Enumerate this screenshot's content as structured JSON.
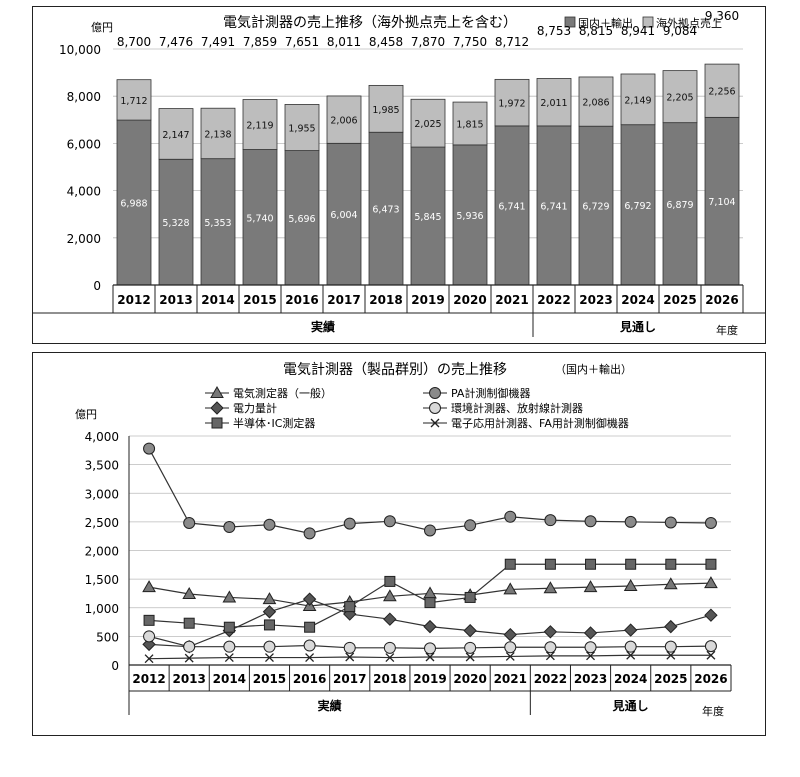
{
  "chart_data": [
    {
      "type": "bar",
      "title": "電気計測器の売上推移（海外拠点売上を含む）",
      "yunit": "億円",
      "xunit": "年度",
      "ylim": [
        0,
        10000
      ],
      "yticks": [
        "0",
        "2,000",
        "4,000",
        "6,000",
        "8,000",
        "10,000"
      ],
      "grid": true,
      "legend_position": "top-right",
      "categories": [
        "2012",
        "2013",
        "2014",
        "2015",
        "2016",
        "2017",
        "2018",
        "2019",
        "2020",
        "2021",
        "2022",
        "2023",
        "2024",
        "2025",
        "2026"
      ],
      "groups": [
        {
          "label": "実績",
          "span": [
            0,
            9
          ]
        },
        {
          "label": "見通し",
          "span": [
            10,
            14
          ]
        }
      ],
      "series": [
        {
          "name": "国内＋輸出",
          "color": "#7a7a7a",
          "values": [
            6988,
            5328,
            5353,
            5740,
            5696,
            6004,
            6473,
            5845,
            5936,
            6741,
            6741,
            6729,
            6792,
            6879,
            7104
          ],
          "labels": [
            "6,988",
            "5,328",
            "5,353",
            "5,740",
            "5,696",
            "6,004",
            "6,473",
            "5,845",
            "5,936",
            "6,741",
            "6,741",
            "6,729",
            "6,792",
            "6,879",
            "7,104"
          ]
        },
        {
          "name": "海外拠点売上",
          "color": "#bdbdbd",
          "values": [
            1712,
            2147,
            2138,
            2119,
            1955,
            2006,
            1985,
            2025,
            1815,
            1972,
            2011,
            2086,
            2149,
            2205,
            2256
          ],
          "labels": [
            "1,712",
            "2,147",
            "2,138",
            "2,119",
            "1,955",
            "2,006",
            "1,985",
            "2,025",
            "1,815",
            "1,972",
            "2,011",
            "2,086",
            "2,149",
            "2,205",
            "2,256"
          ]
        }
      ],
      "totals": [
        8700,
        7476,
        7491,
        7859,
        7651,
        8011,
        8458,
        7870,
        7750,
        8712,
        8753,
        8815,
        8941,
        9084,
        9360
      ],
      "total_labels": [
        "8,700",
        "7,476",
        "7,491",
        "7,859",
        "7,651",
        "8,011",
        "8,458",
        "7,870",
        "7,750",
        "8,712",
        "8,753",
        "8,815",
        "8,941",
        "9,084",
        "9,360"
      ]
    },
    {
      "type": "line",
      "title": "電気計測器（製品群別）の売上推移",
      "subtitle": "（国内＋輸出）",
      "yunit": "億円",
      "xunit": "年度",
      "ylim": [
        0,
        4000
      ],
      "yticks": [
        "0",
        "500",
        "1,000",
        "1,500",
        "2,000",
        "2,500",
        "3,000",
        "3,500",
        "4,000"
      ],
      "grid": true,
      "legend_position": "top",
      "categories": [
        "2012",
        "2013",
        "2014",
        "2015",
        "2016",
        "2017",
        "2018",
        "2019",
        "2020",
        "2021",
        "2022",
        "2023",
        "2024",
        "2025",
        "2026"
      ],
      "groups": [
        {
          "label": "実績",
          "span": [
            0,
            9
          ]
        },
        {
          "label": "見通し",
          "span": [
            10,
            14
          ]
        }
      ],
      "series": [
        {
          "name": "電気測定器（一般）",
          "marker": "triangle",
          "values": [
            1360,
            1240,
            1180,
            1150,
            1030,
            1100,
            1200,
            1250,
            1220,
            1320,
            1340,
            1360,
            1380,
            1410,
            1430
          ]
        },
        {
          "name": "PA計測制御機器",
          "marker": "circle-dark",
          "values": [
            3780,
            2480,
            2410,
            2450,
            2300,
            2470,
            2510,
            2350,
            2440,
            2590,
            2530,
            2510,
            2500,
            2490,
            2480
          ]
        },
        {
          "name": "電力量計",
          "marker": "diamond",
          "values": [
            360,
            320,
            600,
            930,
            1150,
            890,
            800,
            670,
            600,
            530,
            580,
            560,
            610,
            670,
            870
          ]
        },
        {
          "name": "環境計測器、放射線計測器",
          "marker": "circle-light",
          "values": [
            500,
            320,
            320,
            320,
            340,
            300,
            300,
            290,
            300,
            310,
            310,
            310,
            320,
            320,
            330
          ]
        },
        {
          "name": "半導体･IC測定器",
          "marker": "square",
          "values": [
            780,
            730,
            660,
            700,
            660,
            1020,
            1460,
            1090,
            1180,
            1760,
            1760,
            1760,
            1760,
            1760,
            1760
          ]
        },
        {
          "name": "電子応用計測器、FA用計測制御機器",
          "marker": "x",
          "values": [
            110,
            120,
            130,
            130,
            130,
            140,
            130,
            140,
            140,
            150,
            160,
            160,
            170,
            170,
            170
          ]
        }
      ]
    }
  ]
}
